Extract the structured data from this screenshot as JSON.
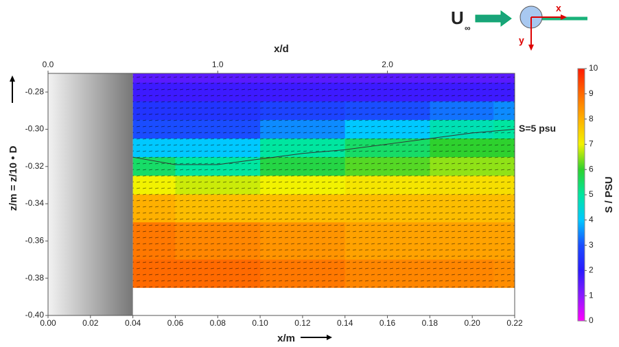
{
  "chart_data": {
    "type": "heatmap",
    "x_label": "x/m",
    "y_label": "z/m  = z/10 • D",
    "x2_label": "x/d",
    "colorbar_label": "S / PSU",
    "xlim": [
      0,
      0.22
    ],
    "xticks": [
      {
        "value": 0,
        "label": "0.00"
      },
      0.02,
      0.04,
      0.06,
      0.08,
      {
        "value": 0.1,
        "label": "0.10"
      },
      0.12,
      0.14,
      0.16,
      0.18,
      {
        "value": 0.2,
        "label": "0.20"
      },
      0.22
    ],
    "ylim": [
      -0.4,
      -0.27
    ],
    "yticks": [
      -0.28,
      {
        "value": -0.3,
        "label": "-0.30"
      },
      -0.32,
      -0.34,
      -0.36,
      -0.38,
      {
        "value": -0.4,
        "label": "-0.40"
      }
    ],
    "x2lim": [
      0,
      2.75
    ],
    "x2ticks": [
      {
        "value": 0,
        "label": "0.0"
      },
      {
        "value": 1,
        "label": "1.0"
      },
      {
        "value": 2,
        "label": "2.0"
      }
    ],
    "clim": [
      0,
      10
    ],
    "cticks": [
      0,
      1,
      2,
      3,
      4,
      5,
      6,
      7,
      8,
      9,
      10
    ],
    "colormap": [
      "#ff00ff",
      "#8a1aff",
      "#2a1aff",
      "#1a4dff",
      "#00c8ff",
      "#00e6a0",
      "#2ed12e",
      "#f2f200",
      "#ffb000",
      "#ff6a00",
      "#ff1a00"
    ],
    "body_x": [
      0,
      0.04
    ],
    "x": [
      0.04,
      0.08,
      0.12,
      0.16,
      0.2,
      0.22
    ],
    "y": [
      -0.27,
      -0.28,
      -0.29,
      -0.3,
      -0.31,
      -0.32,
      -0.33,
      -0.34,
      -0.36,
      -0.38,
      -0.385
    ],
    "values": [
      [
        1.5,
        1.5,
        1.5,
        1.5,
        1.5,
        1.5
      ],
      [
        1.8,
        1.8,
        1.8,
        1.8,
        1.8,
        1.8
      ],
      [
        2.5,
        2.5,
        2.8,
        3,
        3.3,
        3.5
      ],
      [
        3,
        3,
        3.5,
        4,
        4.8,
        5
      ],
      [
        4,
        4,
        5,
        5.5,
        6,
        6
      ],
      [
        5.5,
        5,
        5.8,
        6.2,
        6.5,
        6.5
      ],
      [
        7,
        6.8,
        7,
        7.2,
        7.3,
        7.3
      ],
      [
        8,
        7.8,
        7.8,
        7.8,
        7.8,
        7.8
      ],
      [
        8.8,
        8.6,
        8.4,
        8.2,
        8.2,
        8.2
      ],
      [
        9,
        9,
        8.8,
        8.6,
        8.6,
        8.5
      ],
      [
        9,
        9,
        8.8,
        8.6,
        8.6,
        8.5
      ]
    ],
    "contour": {
      "label": "S=5 psu",
      "level": 5,
      "x": [
        0.04,
        0.06,
        0.08,
        0.1,
        0.12,
        0.14,
        0.16,
        0.18,
        0.2,
        0.22
      ],
      "y": [
        -0.315,
        -0.319,
        -0.319,
        -0.316,
        -0.313,
        -0.311,
        -0.308,
        -0.305,
        -0.302,
        -0.3
      ]
    },
    "inset": {
      "flow_label": "U",
      "flow_subscript": "∞",
      "x_label": "x",
      "y_label": "y"
    }
  }
}
